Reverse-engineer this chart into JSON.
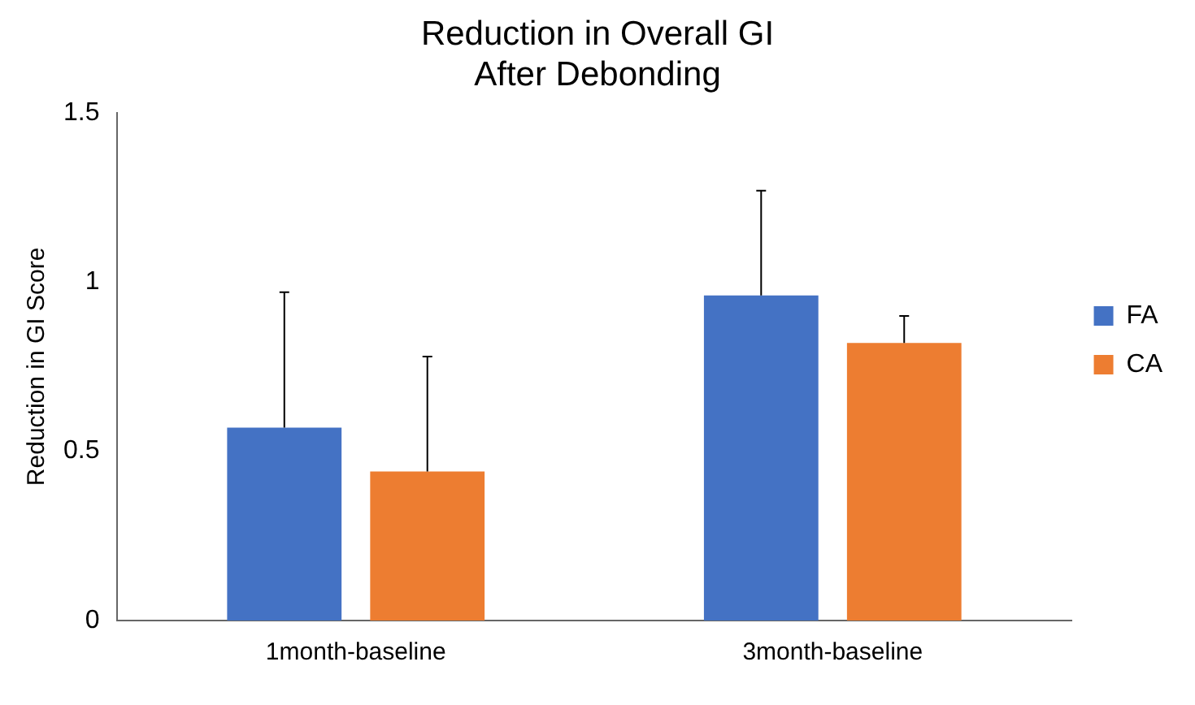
{
  "chart_data": {
    "type": "bar",
    "title": "Reduction in Overall GI\nAfter Debonding",
    "ylabel": "Reduction in GI Score",
    "categories": [
      "1month-baseline",
      "3month-baseline"
    ],
    "series": [
      {
        "name": "FA",
        "color": "#4472c4",
        "values": [
          0.57,
          0.96
        ],
        "errors": [
          [
            0.57,
            0.97
          ],
          [
            0.96,
            1.27
          ]
        ]
      },
      {
        "name": "CA",
        "color": "#ed7d31",
        "values": [
          0.44,
          0.82
        ],
        "errors": [
          [
            0.44,
            0.78
          ],
          [
            0.82,
            0.9
          ]
        ]
      }
    ],
    "ylim": [
      0,
      1.5
    ],
    "yticks": [
      0,
      0.5,
      1,
      1.5
    ],
    "grid": false,
    "legend": "right"
  }
}
